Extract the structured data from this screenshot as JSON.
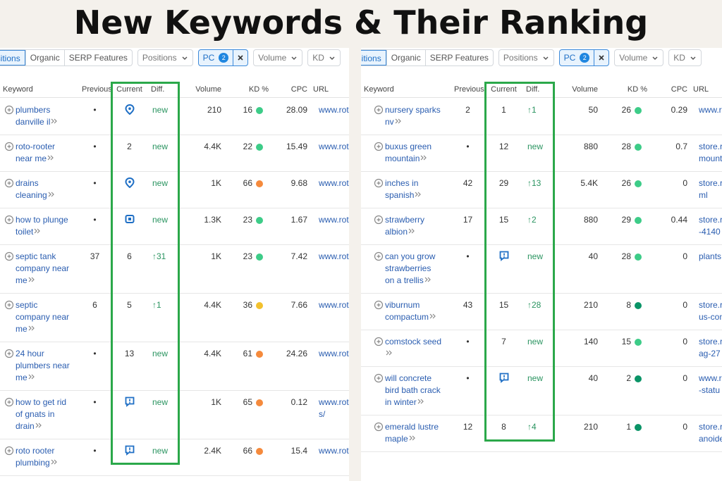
{
  "title": "New Keywords & Their Ranking",
  "panels": [
    {
      "tabs": [
        "Positions",
        "Organic",
        "SERP Features"
      ],
      "filters": [
        {
          "label": "Positions"
        },
        {
          "label": "PC",
          "badge": "2",
          "active": true
        },
        {
          "label": "Volume"
        },
        {
          "label": "KD"
        }
      ],
      "headers": [
        "Keyword",
        "Previous",
        "Current",
        "Diff.",
        "Volume",
        "KD %",
        "CPC",
        "URL"
      ],
      "rows": [
        {
          "keyword": "plumbers danville il",
          "previous": "•",
          "current": null,
          "current_icon": "pin",
          "diff": "new",
          "volume": "210",
          "kd": "16",
          "kd_color": "#3dcc88",
          "cpc": "28.09",
          "url": [
            "www.rot"
          ]
        },
        {
          "keyword": "roto-rooter near me",
          "previous": "•",
          "current": "2",
          "diff": "new",
          "volume": "4.4K",
          "kd": "22",
          "kd_color": "#3dcc88",
          "cpc": "15.49",
          "url": [
            "www.rot"
          ]
        },
        {
          "keyword": "drains cleaning",
          "previous": "•",
          "current": null,
          "current_icon": "pin",
          "diff": "new",
          "volume": "1K",
          "kd": "66",
          "kd_color": "#f58a3c",
          "cpc": "9.68",
          "url": [
            "www.rot"
          ]
        },
        {
          "keyword": "how to plunge toilet",
          "previous": "•",
          "current": null,
          "current_icon": "image",
          "diff": "new",
          "volume": "1.3K",
          "kd": "23",
          "kd_color": "#3dcc88",
          "cpc": "1.67",
          "url": [
            "www.rot"
          ]
        },
        {
          "keyword": "septic tank company near me",
          "previous": "37",
          "current": "6",
          "diff": "↑31",
          "volume": "1K",
          "kd": "23",
          "kd_color": "#3dcc88",
          "cpc": "7.42",
          "url": [
            "www.rot"
          ]
        },
        {
          "keyword": "septic company near me",
          "previous": "6",
          "current": "5",
          "diff": "↑1",
          "volume": "4.4K",
          "kd": "36",
          "kd_color": "#f2c12e",
          "cpc": "7.66",
          "url": [
            "www.rot"
          ]
        },
        {
          "keyword": "24 hour plumbers near me",
          "previous": "•",
          "current": "13",
          "diff": "new",
          "volume": "4.4K",
          "kd": "61",
          "kd_color": "#f58a3c",
          "cpc": "24.26",
          "url": [
            "www.rot"
          ]
        },
        {
          "keyword": "how to get rid of gnats in drain",
          "previous": "•",
          "current": null,
          "current_icon": "snippet",
          "diff": "new",
          "volume": "1K",
          "kd": "65",
          "kd_color": "#f58a3c",
          "cpc": "0.12",
          "url": [
            "www.rot",
            "s/"
          ]
        },
        {
          "keyword": "roto rooter plumbing",
          "previous": "•",
          "current": null,
          "current_icon": "snippet",
          "diff": "new",
          "volume": "2.4K",
          "kd": "66",
          "kd_color": "#f58a3c",
          "cpc": "15.4",
          "url": [
            "www.rot"
          ]
        }
      ]
    },
    {
      "tabs": [
        "Positions",
        "Organic",
        "SERP Features"
      ],
      "filters": [
        {
          "label": "Positions"
        },
        {
          "label": "PC",
          "badge": "2",
          "active": true
        },
        {
          "label": "Volume"
        },
        {
          "label": "KD"
        }
      ],
      "headers": [
        "Keyword",
        "Previous",
        "Current",
        "Diff.",
        "Volume",
        "KD %",
        "CPC",
        "URL"
      ],
      "rows": [
        {
          "keyword": "nursery sparks nv",
          "previous": "2",
          "current": "1",
          "diff": "↑1",
          "volume": "50",
          "kd": "26",
          "kd_color": "#3dcc88",
          "cpc": "0.29",
          "url": [
            "www.r"
          ]
        },
        {
          "keyword": "buxus green mountain",
          "previous": "•",
          "current": "12",
          "diff": "new",
          "volume": "880",
          "kd": "28",
          "kd_color": "#3dcc88",
          "cpc": "0.7",
          "url": [
            "store.r",
            "mount"
          ]
        },
        {
          "keyword": "inches in spanish",
          "previous": "42",
          "current": "29",
          "diff": "↑13",
          "volume": "5.4K",
          "kd": "26",
          "kd_color": "#3dcc88",
          "cpc": "0",
          "url": [
            "store.r",
            "ml"
          ]
        },
        {
          "keyword": "strawberry albion",
          "previous": "17",
          "current": "15",
          "diff": "↑2",
          "volume": "880",
          "kd": "29",
          "kd_color": "#3dcc88",
          "cpc": "0.44",
          "url": [
            "store.r",
            "-4140"
          ]
        },
        {
          "keyword": "can you grow strawberries on a trellis",
          "previous": "•",
          "current": null,
          "current_icon": "snippet",
          "diff": "new",
          "volume": "40",
          "kd": "28",
          "kd_color": "#3dcc88",
          "cpc": "0",
          "url": [
            "plants."
          ]
        },
        {
          "keyword": "viburnum compactum",
          "previous": "43",
          "current": "15",
          "diff": "↑28",
          "volume": "210",
          "kd": "8",
          "kd_color": "#0a9467",
          "cpc": "0",
          "url": [
            "store.r",
            "us-con"
          ]
        },
        {
          "keyword": "comstock seed",
          "previous": "•",
          "current": "7",
          "diff": "new",
          "volume": "140",
          "kd": "15",
          "kd_color": "#3dcc88",
          "cpc": "0",
          "url": [
            "store.r",
            "ag-27"
          ]
        },
        {
          "keyword": "will concrete bird bath crack in winter",
          "previous": "•",
          "current": null,
          "current_icon": "snippet",
          "diff": "new",
          "volume": "40",
          "kd": "2",
          "kd_color": "#0a9467",
          "cpc": "0",
          "url": [
            "www.r",
            "-statu"
          ]
        },
        {
          "keyword": "emerald lustre maple",
          "previous": "12",
          "current": "8",
          "diff": "↑4",
          "volume": "210",
          "kd": "1",
          "kd_color": "#0a9467",
          "cpc": "0",
          "url": [
            "store.r",
            "anoide"
          ]
        }
      ]
    }
  ]
}
